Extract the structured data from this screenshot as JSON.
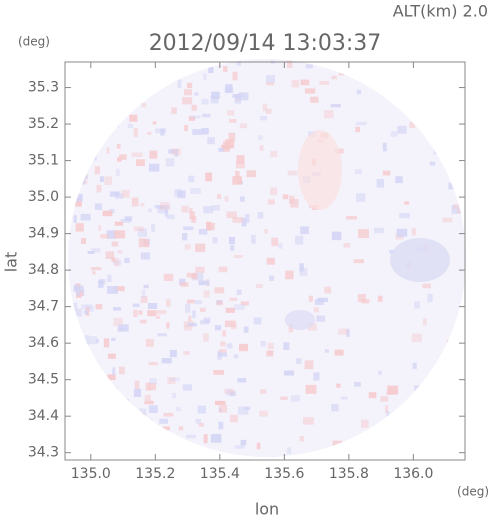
{
  "chart_data": {
    "type": "radar-map",
    "title": "2012/09/14 13:03:37",
    "altitude_label": "ALT(km) 2.0",
    "x_label": "lon",
    "y_label": "lat",
    "x_unit": "(deg)",
    "y_unit": "(deg)",
    "xlim": [
      134.92,
      136.16
    ],
    "ylim": [
      34.28,
      35.37
    ],
    "xticks": [
      {
        "value": 135.0,
        "label": "135.0"
      },
      135.2,
      135.4,
      135.6,
      135.8,
      {
        "value": 136.0,
        "label": "136.0"
      }
    ],
    "yticks": [
      34.3,
      34.4,
      34.5,
      34.6,
      34.7,
      34.8,
      34.9,
      {
        "value": 35.0,
        "label": "35.0"
      },
      35.1,
      35.2,
      35.3
    ]
  }
}
